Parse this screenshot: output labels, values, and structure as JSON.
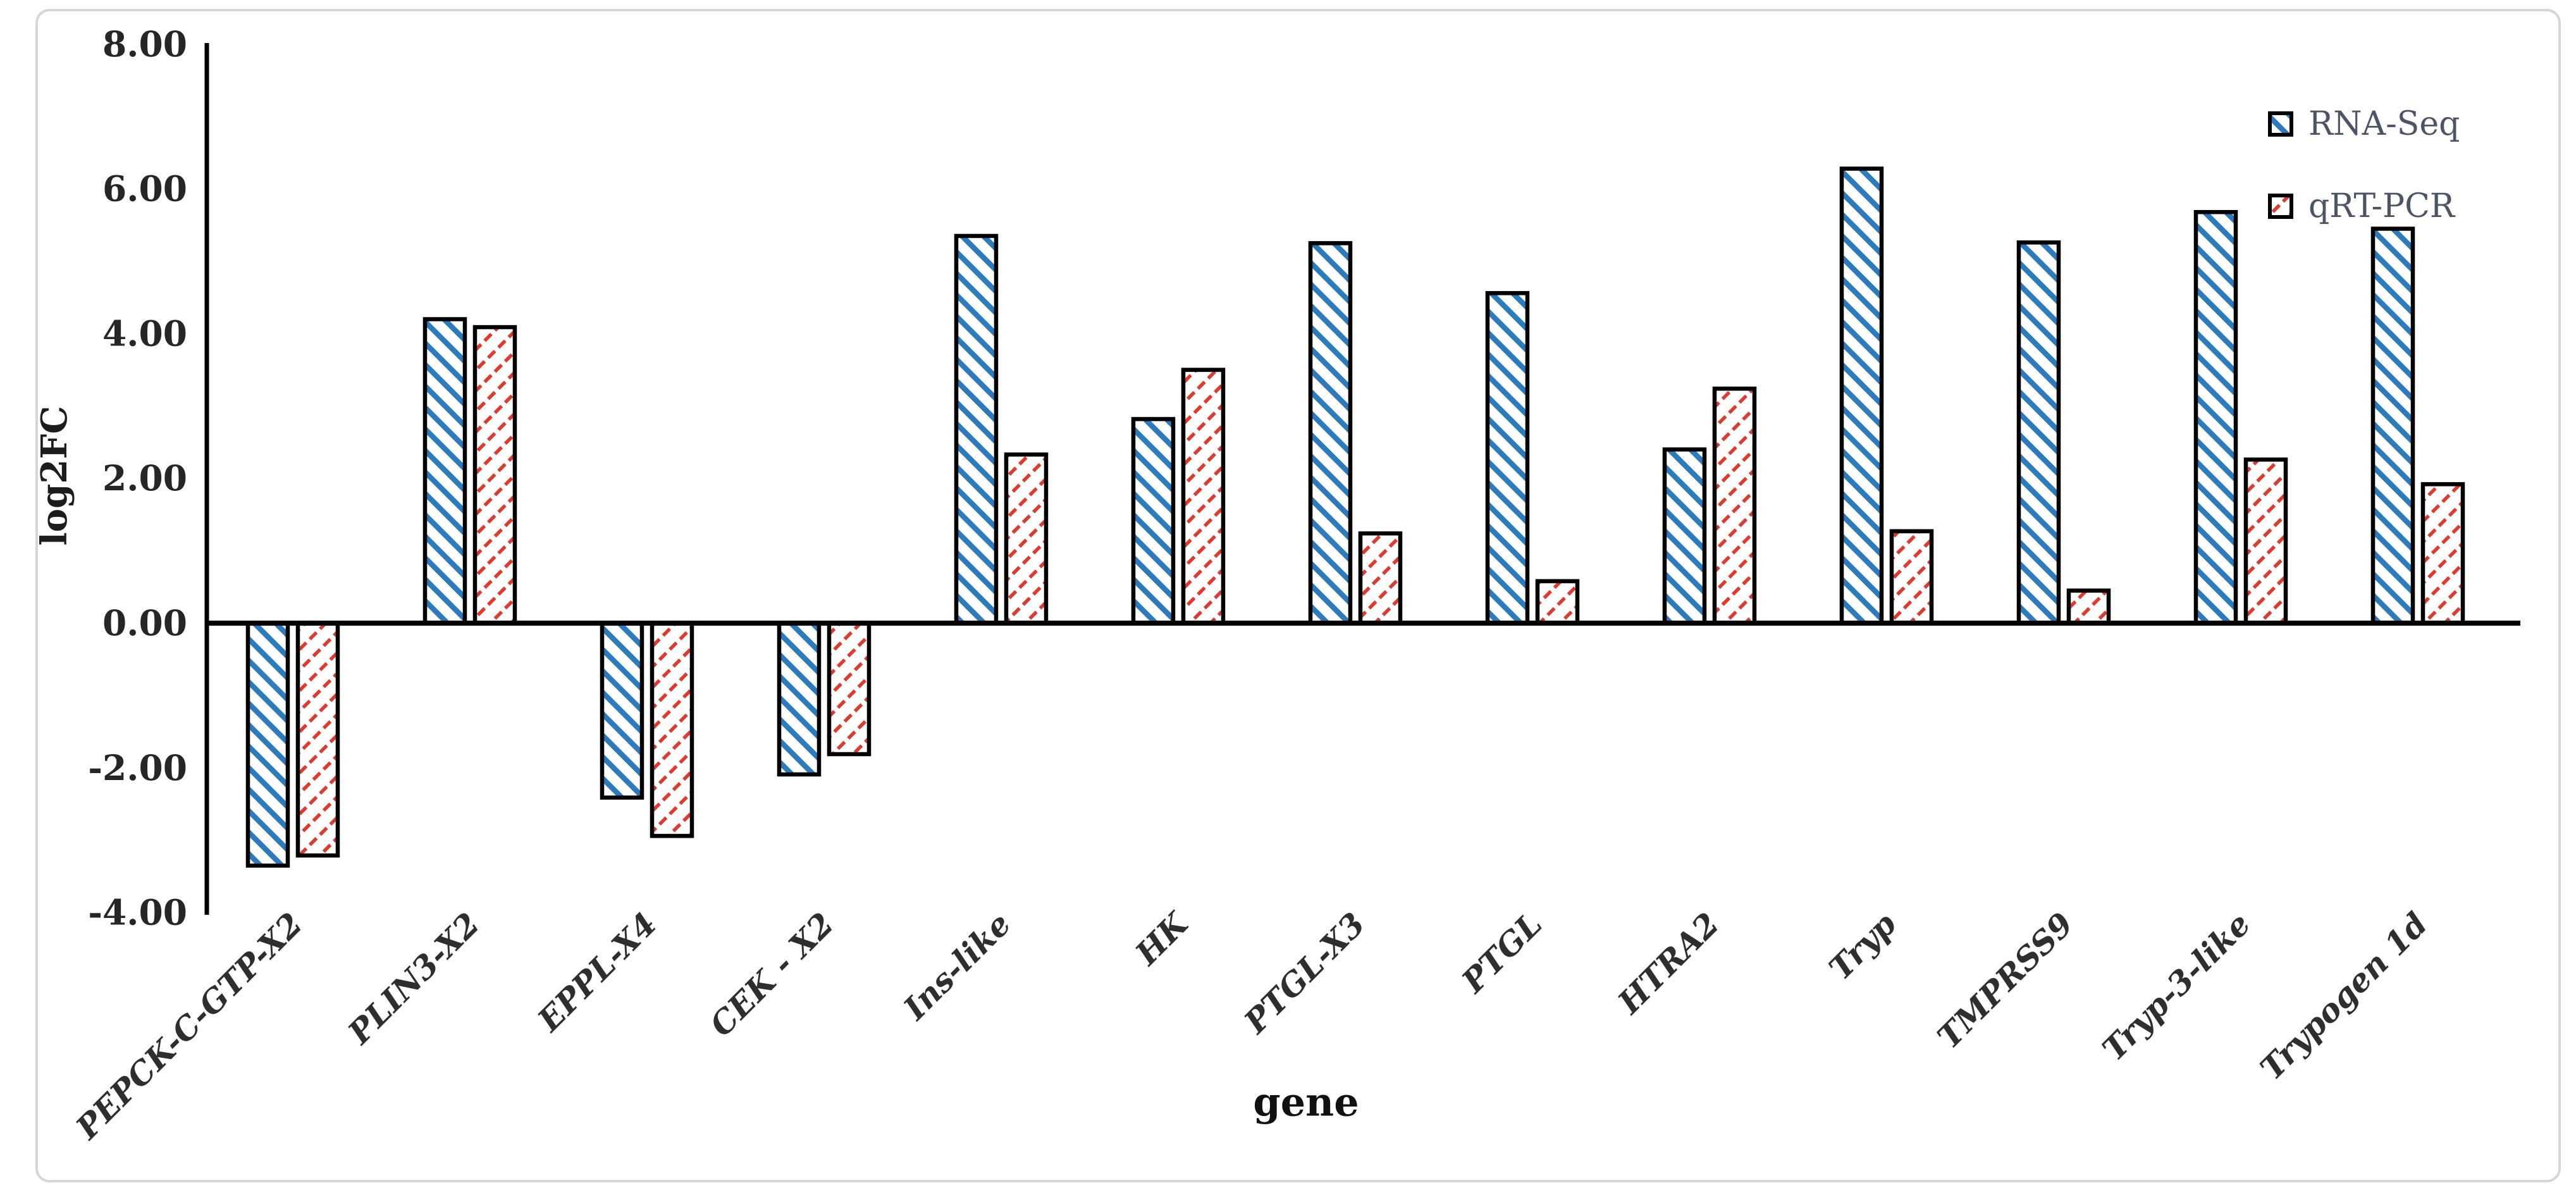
{
  "chart_data": {
    "type": "bar",
    "title": "",
    "xlabel": "gene",
    "ylabel": "log2FC",
    "categories": [
      "PEPCK-C-GTP-X2",
      "PLIN3-X2",
      "EPPL-X4",
      "CEK - X2",
      "Ins-like",
      "HK",
      "PTGL-X3",
      "PTGL",
      "HTRA2",
      "Tryp",
      "TMPRSS9",
      "Tryp-3-like",
      "Trypogen 1d"
    ],
    "series": [
      {
        "name": "RNA-Seq",
        "pattern": "diagonal-down-stripes",
        "color": "#2B7BBD",
        "values": [
          -3.35,
          4.2,
          -2.41,
          -2.09,
          5.35,
          2.82,
          5.25,
          4.56,
          2.4,
          6.28,
          5.26,
          5.68,
          5.45
        ]
      },
      {
        "name": "qRT-PCR",
        "pattern": "diagonal-up-dashes",
        "color": "#DF3A2E",
        "values": [
          -3.21,
          4.09,
          -2.94,
          -1.81,
          2.33,
          3.5,
          1.24,
          0.58,
          3.24,
          1.27,
          0.45,
          2.26,
          1.92
        ]
      }
    ],
    "ylim": [
      -4,
      8
    ],
    "yticks": [
      8,
      6,
      4,
      2,
      0,
      -2,
      -4
    ],
    "ytick_labels": [
      "8.00",
      "6.00",
      "4.00",
      "2.00",
      "0.00",
      "-2.00",
      "-4.00"
    ],
    "grid": "off",
    "legend_position": "top-right"
  },
  "legend": {
    "items": [
      {
        "label": "RNA-Seq"
      },
      {
        "label": "qRT-PCR"
      }
    ]
  },
  "colors": {
    "rna_seq": "#2B7BBD",
    "qrt_pcr": "#DF3A2E",
    "bar_border": "#000000",
    "axis": "#000000",
    "tick_text": "#262626",
    "category_text": "#2e2e2e",
    "legend_text": "#4b5565",
    "frame_border": "#d6d6d6",
    "background": "#ffffff"
  }
}
